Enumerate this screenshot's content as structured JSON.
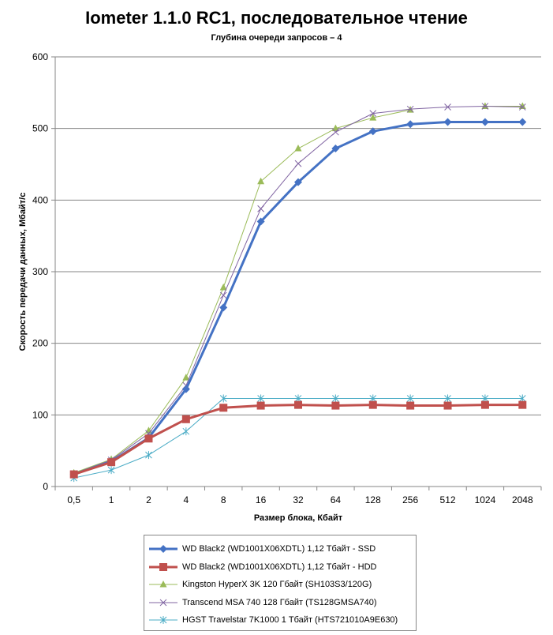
{
  "chart_data": {
    "type": "line",
    "title": "Iometer 1.1.0 RC1, последовательное чтение",
    "subtitle": "Глубина очереди запросов – 4",
    "xlabel": "Размер блока, Кбайт",
    "ylabel": "Скорость передачи данных, Мбайт/с",
    "categories": [
      "0,5",
      "1",
      "2",
      "4",
      "8",
      "16",
      "32",
      "64",
      "128",
      "256",
      "512",
      "1024",
      "2048"
    ],
    "ylim": [
      0,
      600
    ],
    "yticks": [
      0,
      100,
      200,
      300,
      400,
      500,
      600
    ],
    "grid": "horizontal",
    "legend_position": "bottom",
    "series": [
      {
        "name": "WD Black2 (WD1001X06XDTL) 1,12 Тбайт - SSD",
        "color": "#4472C4",
        "marker": "diamond",
        "line": "thick",
        "values": [
          17,
          35,
          68,
          136,
          250,
          370,
          425,
          472,
          496,
          506,
          509,
          509,
          509
        ]
      },
      {
        "name": "WD Black2 (WD1001X06XDTL) 1,12 Тбайт - HDD",
        "color": "#C0504D",
        "marker": "square",
        "line": "thick",
        "values": [
          17,
          34,
          67,
          94,
          110,
          113,
          114,
          113,
          114,
          113,
          113,
          114,
          114
        ]
      },
      {
        "name": "Kingston HyperX 3K 120 Гбайт (SH103S3/120G)",
        "color": "#9BBB59",
        "marker": "triangle",
        "line": "thin",
        "values": [
          19,
          38,
          78,
          152,
          278,
          426,
          472,
          500,
          515,
          526,
          null,
          531,
          531
        ]
      },
      {
        "name": "Transcend MSA 740 128 Гбайт (TS128GMSA740)",
        "color": "#8064A2",
        "marker": "x",
        "line": "thin",
        "values": [
          18,
          37,
          74,
          141,
          267,
          388,
          451,
          495,
          521,
          527,
          530,
          531,
          530
        ]
      },
      {
        "name": "HGST Travelstar 7K1000 1 Тбайт (HTS721010A9E630)",
        "color": "#4BACC6",
        "marker": "star",
        "line": "thin",
        "values": [
          12,
          23,
          44,
          77,
          123,
          123,
          123,
          123,
          123,
          123,
          123,
          123,
          123
        ]
      }
    ]
  }
}
